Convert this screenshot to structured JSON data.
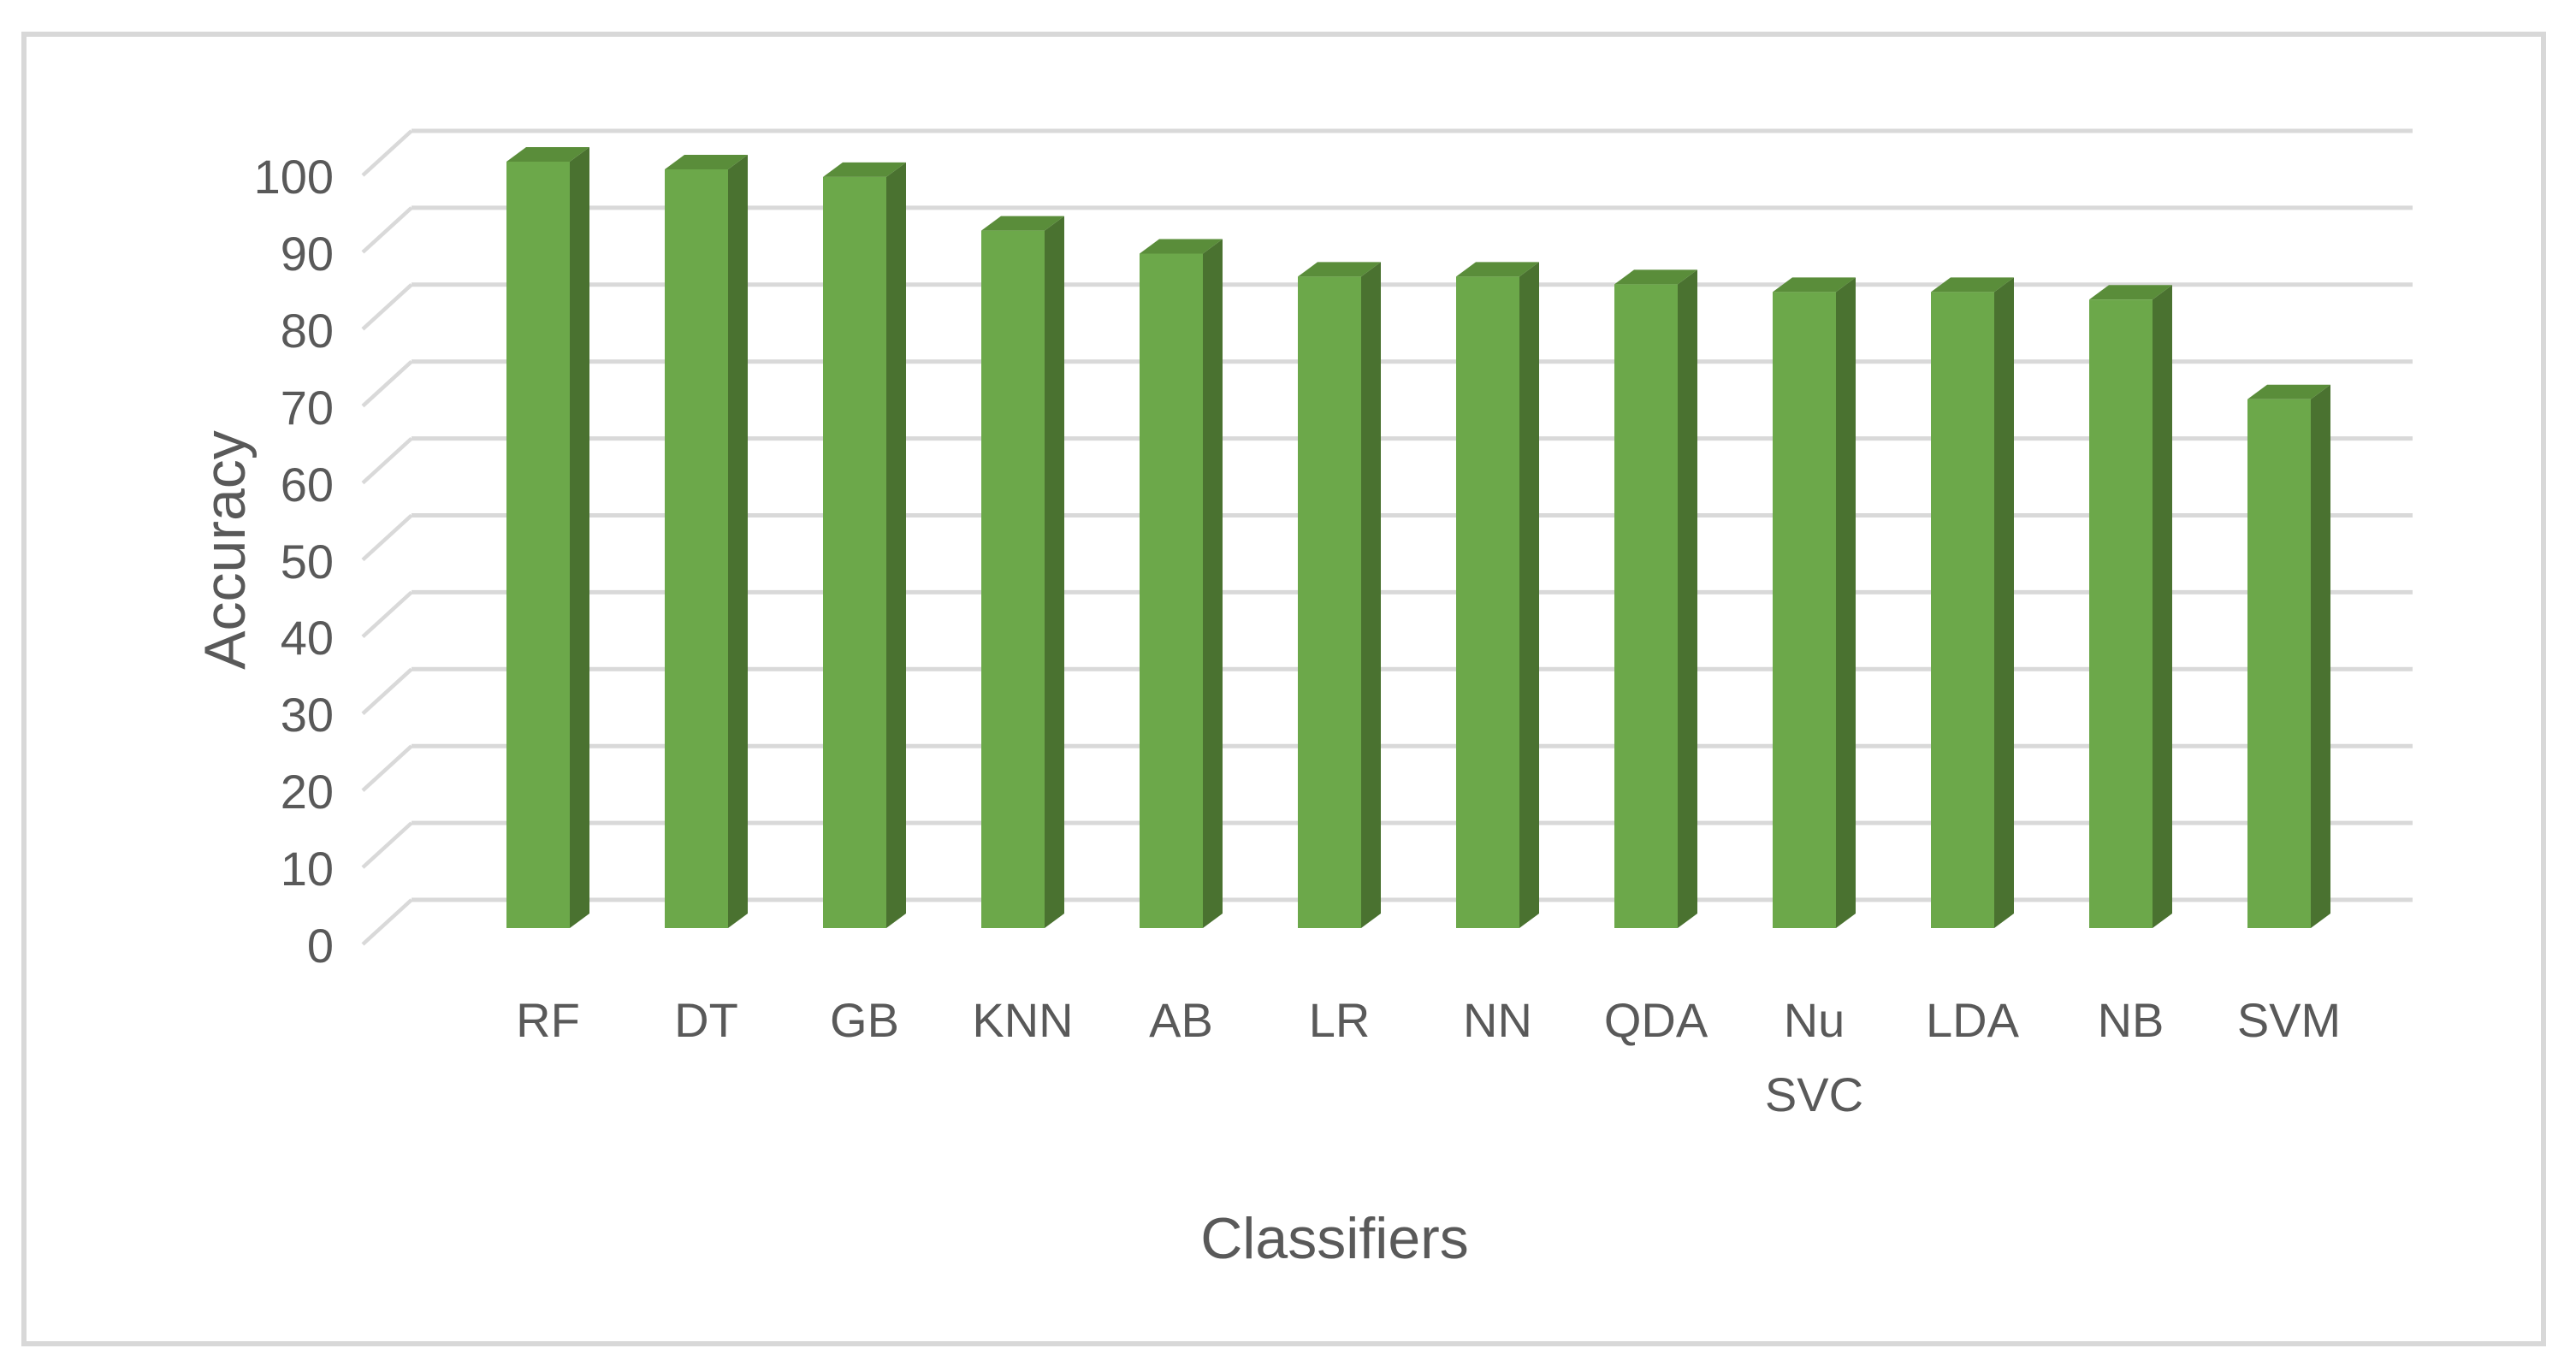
{
  "chart_data": {
    "type": "bar",
    "style": "3d-column",
    "title": "",
    "xlabel": "Classifiers",
    "ylabel": "Accuracy",
    "categories": [
      "RF",
      "DT",
      "GB",
      "KNN",
      "AB",
      "LR",
      "NN",
      "QDA",
      "Nu SVC",
      "LDA",
      "NB",
      "SVM"
    ],
    "values": [
      100,
      99,
      98,
      91,
      88,
      85,
      85,
      84,
      83,
      83,
      82,
      69
    ],
    "ylim": [
      0,
      100
    ],
    "ytick_step": 10,
    "yticks": [
      0,
      10,
      20,
      30,
      40,
      50,
      60,
      70,
      80,
      90,
      100
    ],
    "grid": "horizontal",
    "legend": "none",
    "colors": {
      "bar_front": "#6CA84A",
      "bar_side": "#4A7230",
      "bar_top": "#5A8D3A",
      "gridline": "#D9D9D9",
      "text": "#595959",
      "frame_border": "#D8D8D8",
      "background": "#FFFFFF"
    }
  }
}
